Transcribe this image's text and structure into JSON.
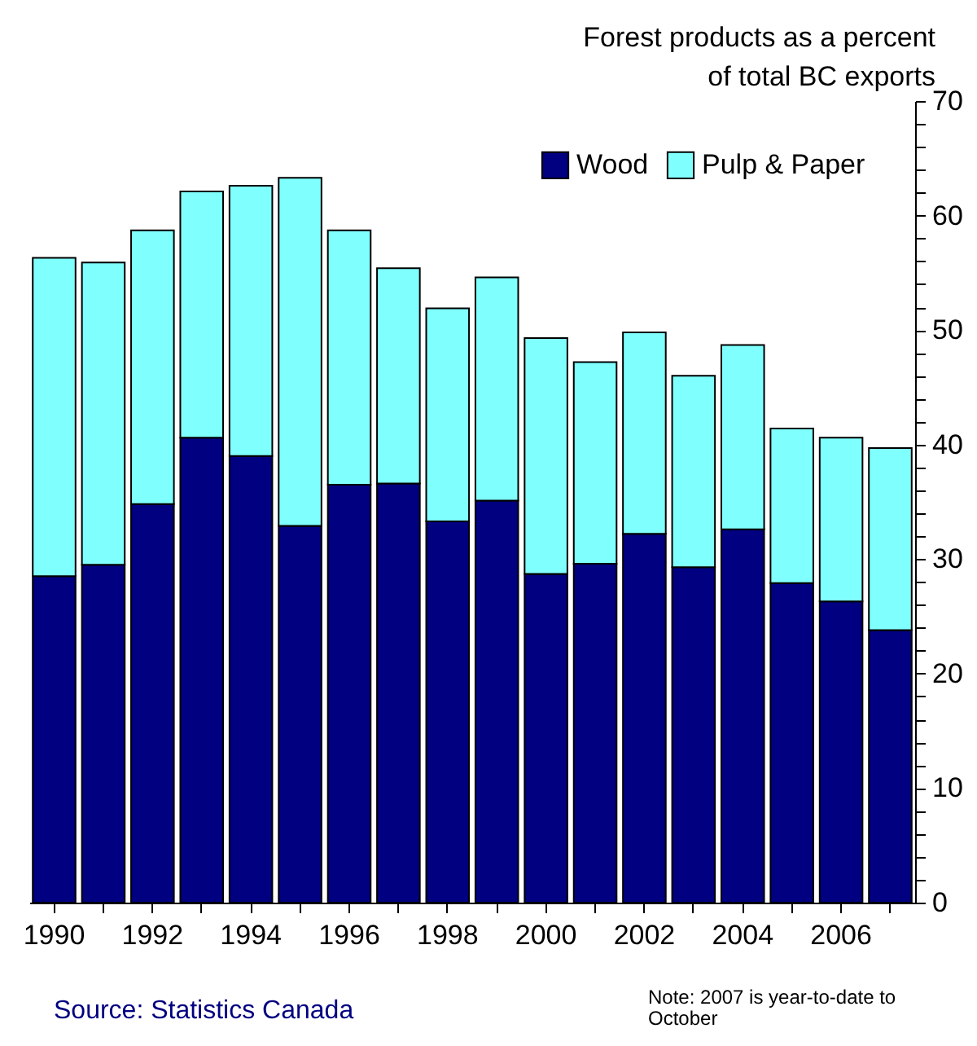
{
  "chart_data": {
    "type": "bar",
    "stacked": true,
    "ylabel": "Forest products as a percent of total BC exports",
    "categories": [
      "1990",
      null,
      "1992",
      null,
      "1994",
      null,
      "1996",
      null,
      "1998",
      null,
      "2000",
      null,
      "2002",
      null,
      "2004",
      null,
      "2006",
      null
    ],
    "series": [
      {
        "name": "Wood",
        "color": "#000080",
        "values": [
          28.5,
          29.5,
          34.8,
          40.6,
          39.0,
          32.9,
          36.5,
          36.6,
          33.3,
          35.1,
          28.7,
          29.6,
          32.2,
          29.3,
          32.6,
          27.9,
          26.3,
          23.8
        ]
      },
      {
        "name": "Pulp & Paper",
        "color": "#80ffff",
        "values": [
          27.8,
          26.4,
          23.9,
          21.5,
          23.6,
          30.4,
          22.2,
          18.8,
          18.6,
          19.5,
          20.6,
          17.6,
          17.6,
          16.7,
          16.1,
          13.5,
          14.3,
          15.9
        ]
      }
    ],
    "ylim": [
      0,
      70
    ],
    "yticks": [
      0,
      {
        "value": 2,
        "label": null
      },
      {
        "value": 4,
        "label": null
      },
      {
        "value": 6,
        "label": null
      },
      {
        "value": 8,
        "label": null
      },
      10,
      {
        "value": 12,
        "label": null
      },
      {
        "value": 14,
        "label": null
      },
      {
        "value": 16,
        "label": null
      },
      {
        "value": 18,
        "label": null
      },
      20,
      {
        "value": 22,
        "label": null
      },
      {
        "value": 24,
        "label": null
      },
      {
        "value": 26,
        "label": null
      },
      {
        "value": 28,
        "label": null
      },
      30,
      {
        "value": 32,
        "label": null
      },
      {
        "value": 34,
        "label": null
      },
      {
        "value": 36,
        "label": null
      },
      {
        "value": 38,
        "label": null
      },
      40,
      {
        "value": 42,
        "label": null
      },
      {
        "value": 44,
        "label": null
      },
      {
        "value": 46,
        "label": null
      },
      {
        "value": 48,
        "label": null
      },
      50,
      {
        "value": 52,
        "label": null
      },
      {
        "value": 54,
        "label": null
      },
      {
        "value": 56,
        "label": null
      },
      {
        "value": 58,
        "label": null
      },
      60,
      {
        "value": 62,
        "label": null
      },
      {
        "value": 64,
        "label": null
      },
      {
        "value": 66,
        "label": null
      },
      {
        "value": 68,
        "label": null
      },
      70
    ],
    "legend": "top right",
    "grid": false,
    "annotations": [
      "Source: Statistics Canada",
      "Note: 2007 is year-to-date to October"
    ]
  }
}
